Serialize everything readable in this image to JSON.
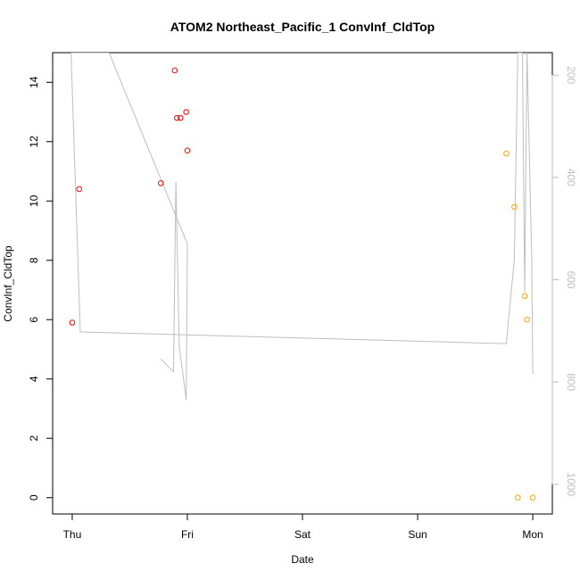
{
  "chart_data": {
    "type": "scatter",
    "title": "ATOM2 Northeast_Pacific_1 ConvInf_CldTop",
    "xlabel": "Date",
    "ylabel": "ConvInf_CldTop",
    "x_ticks": [
      {
        "label": "Thu",
        "value": 0
      },
      {
        "label": "Fri",
        "value": 1
      },
      {
        "label": "Sat",
        "value": 2
      },
      {
        "label": "Sun",
        "value": 3
      },
      {
        "label": "Mon",
        "value": 4
      }
    ],
    "xlim": [
      -0.17,
      4.17
    ],
    "ylim": [
      -0.55,
      15
    ],
    "y_ticks": [
      0,
      2,
      4,
      6,
      8,
      10,
      12,
      14
    ],
    "y2_ticks": [
      200,
      400,
      600,
      800,
      1000
    ],
    "y2lim": [
      1058,
      156
    ],
    "colors": {
      "red": "#ff0000",
      "orange": "#ffa500",
      "line": "#bebebe"
    },
    "series": [
      {
        "color": "red",
        "points": [
          {
            "x": 0.0,
            "y": 5.9
          },
          {
            "x": 0.06,
            "y": 10.4
          },
          {
            "x": 0.77,
            "y": 10.6
          },
          {
            "x": 0.89,
            "y": 14.4
          },
          {
            "x": 0.91,
            "y": 12.8
          },
          {
            "x": 0.94,
            "y": 12.8
          },
          {
            "x": 0.99,
            "y": 13.0
          },
          {
            "x": 1.0,
            "y": 11.7
          }
        ]
      },
      {
        "color": "orange",
        "points": [
          {
            "x": 3.77,
            "y": 11.6
          },
          {
            "x": 3.84,
            "y": 9.8
          },
          {
            "x": 3.87,
            "y": 0.0
          },
          {
            "x": 3.93,
            "y": 6.8
          },
          {
            "x": 3.95,
            "y": 6.0
          },
          {
            "x": 4.0,
            "y": 0.0
          }
        ]
      }
    ],
    "line_right_axis": [
      {
        "x": 0.77,
        "y": 755
      },
      {
        "x": 0.88,
        "y": 780
      },
      {
        "x": 0.9,
        "y": 408
      },
      {
        "x": 0.93,
        "y": 730
      },
      {
        "x": 0.99,
        "y": 835
      },
      {
        "x": 1.0,
        "y": 530
      },
      {
        "x": 0.32,
        "y": 156
      },
      {
        "x": -0.01,
        "y": 156
      },
      {
        "x": 0.07,
        "y": 702
      },
      {
        "x": 3.77,
        "y": 725
      },
      {
        "x": 3.84,
        "y": 560
      },
      {
        "x": 3.87,
        "y": 156
      },
      {
        "x": 3.91,
        "y": 156
      },
      {
        "x": 3.93,
        "y": 625
      },
      {
        "x": 3.95,
        "y": 156
      },
      {
        "x": 3.99,
        "y": 550
      },
      {
        "x": 4.0,
        "y": 785
      }
    ]
  }
}
